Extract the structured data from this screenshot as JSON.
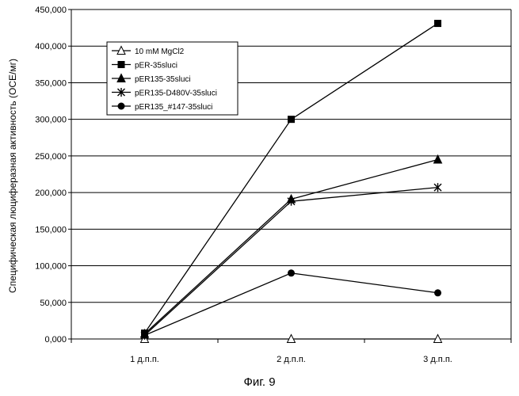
{
  "caption": "Фиг. 9",
  "chart_data": {
    "type": "line",
    "title": "",
    "xlabel": "",
    "ylabel": "Специфическая люциферазная активность (ОСЕ/мг)",
    "categories": [
      "1 д.п.п.",
      "2 д.п.п.",
      "3 д.п.п."
    ],
    "ylim": [
      0,
      450000
    ],
    "ytick_step": 50000,
    "ytick_labels": [
      "0,000",
      "50,000",
      "100,000",
      "150,000",
      "200,000",
      "250,000",
      "300,000",
      "350,000",
      "400,000",
      "450,000"
    ],
    "grid": true,
    "legend_position": "top-left",
    "series": [
      {
        "name": "10 mM MgCl2",
        "marker": "triangle-open",
        "values": [
          0,
          0,
          0
        ]
      },
      {
        "name": "pER-35sluci",
        "marker": "square",
        "values": [
          8000,
          300000,
          431000
        ]
      },
      {
        "name": "pER135-35sluci",
        "marker": "triangle",
        "values": [
          7000,
          191000,
          245000
        ]
      },
      {
        "name": "pER135-D480V-35sluci",
        "marker": "asterisk",
        "values": [
          5000,
          188000,
          207000
        ]
      },
      {
        "name": "pER135_#147-35sluci",
        "marker": "circle",
        "values": [
          5000,
          90000,
          63000
        ]
      }
    ],
    "colors": {
      "line": "#000000",
      "grid": "#000000",
      "background": "#ffffff"
    }
  }
}
